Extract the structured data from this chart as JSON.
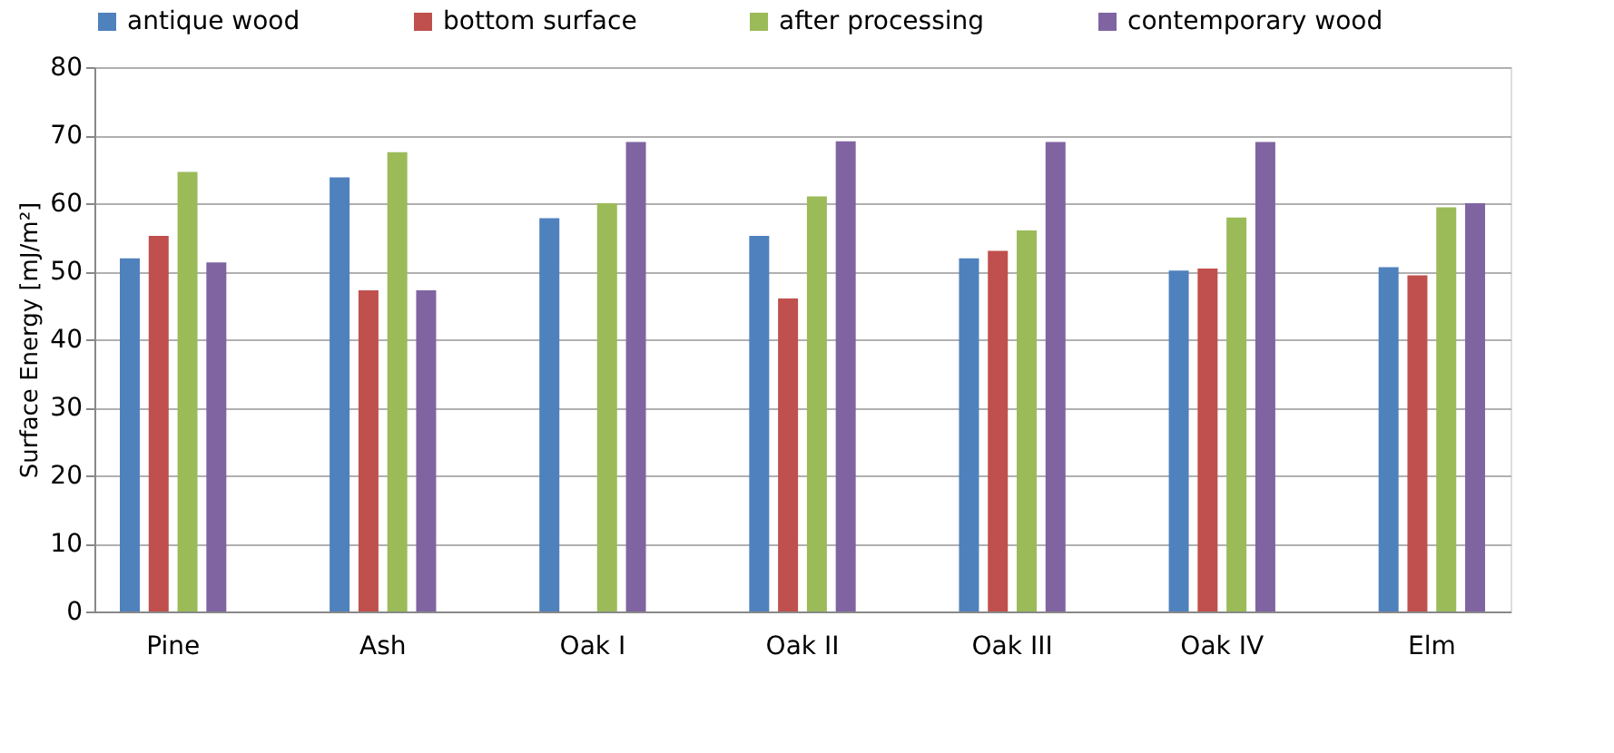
{
  "chart_data": {
    "type": "bar",
    "ylabel": "Surface Energy  [mJ/m²]",
    "categories": [
      "Pine",
      "Ash",
      "Oak I",
      "Oak II",
      "Oak III",
      "Oak IV",
      "Elm"
    ],
    "series": [
      {
        "name": "antique wood",
        "color": "#4f81bd",
        "values": [
          51.9,
          63.8,
          57.8,
          55.2,
          51.9,
          50.1,
          50.6
        ]
      },
      {
        "name": "bottom surface",
        "color": "#c0504d",
        "values": [
          55.2,
          47.2,
          null,
          46,
          53,
          50.4,
          49.4
        ]
      },
      {
        "name": "after processing",
        "color": "#9bbb59",
        "values": [
          64.6,
          67.5,
          60,
          61,
          56,
          57.9,
          59.4
        ]
      },
      {
        "name": "contemporary wood",
        "color": "#8064a2",
        "values": [
          51.3,
          47.2,
          69,
          69.1,
          69,
          69,
          60
        ]
      }
    ],
    "ylim": [
      0,
      80
    ],
    "yticks": [
      0,
      10,
      20,
      30,
      40,
      50,
      60,
      70,
      80
    ],
    "grid": "y",
    "legend": "top"
  }
}
